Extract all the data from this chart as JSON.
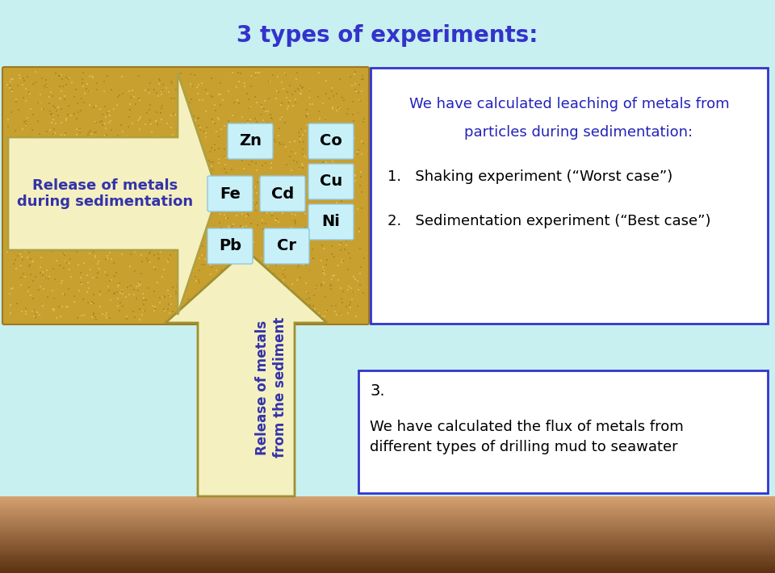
{
  "title": "3 types of experiments:",
  "title_color": "#3333cc",
  "title_fontsize": 20,
  "bg_color": "#c8f0f0",
  "top_box_text_left": "Release of metals\nduring sedimentation",
  "metals": [
    "Zn",
    "Fe",
    "Cd",
    "Co",
    "Cu",
    "Ni",
    "Pb",
    "Cr"
  ],
  "right_box1_line1": "We have calculated leaching of metals from",
  "right_box1_line2": "    particles during sedimentation:",
  "right_box1_item1": "1.   Shaking experiment (“Worst case”)",
  "right_box1_item2": "2.   Sedimentation experiment (“Best case”)",
  "bottom_box_title": "3.",
  "bottom_box_text": "We have calculated the flux of metals from\ndifferent types of drilling mud to seawater",
  "up_arrow_label1": "Release of metals",
  "up_arrow_label2": "from the sediment",
  "font_comic": "Comic Sans MS",
  "sandy_dot_color1": "#c8a030",
  "sandy_dot_color2": "#e8c870",
  "sandy_bg": "#c8a030"
}
